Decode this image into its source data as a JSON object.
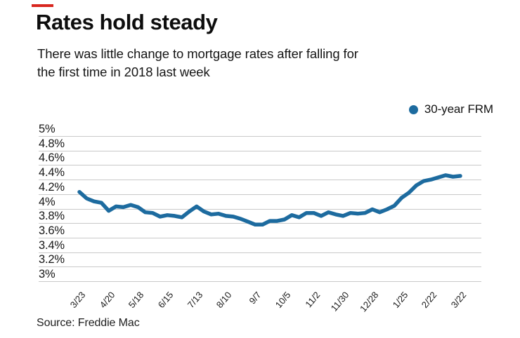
{
  "accent": {
    "dash_color": "#d8261f"
  },
  "header": {
    "title": "Rates hold steady",
    "subtitle_line1": "There was little change to mortgage rates after falling for",
    "subtitle_line2": "the first time in 2018 last week"
  },
  "legend": {
    "label": "30-year FRM"
  },
  "source": "Source: Freddie Mac",
  "chart_data": {
    "type": "line",
    "title": "Rates hold steady",
    "xlabel": "",
    "ylabel": "",
    "ylim": [
      3,
      5
    ],
    "grid": true,
    "legend_position": "top-right",
    "y_ticks": [
      "5%",
      "4.8%",
      "4.6%",
      "4.4%",
      "4.2%",
      "4%",
      "3.8%",
      "3.6%",
      "3.4%",
      "3.2%",
      "3%"
    ],
    "x": [
      "3/23",
      "3/30",
      "4/6",
      "4/13",
      "4/20",
      "4/27",
      "5/4",
      "5/11",
      "5/18",
      "5/25",
      "6/1",
      "6/8",
      "6/15",
      "6/22",
      "6/29",
      "7/6",
      "7/13",
      "7/20",
      "7/27",
      "8/3",
      "8/10",
      "8/17",
      "8/24",
      "8/31",
      "9/7",
      "9/14",
      "9/21",
      "9/28",
      "10/5",
      "10/12",
      "10/19",
      "10/26",
      "11/2",
      "11/9",
      "11/16",
      "11/22",
      "11/30",
      "12/7",
      "12/14",
      "12/21",
      "12/28",
      "1/4",
      "1/11",
      "1/18",
      "1/25",
      "2/1",
      "2/8",
      "2/15",
      "2/22",
      "3/1",
      "3/8",
      "3/15",
      "3/22"
    ],
    "x_tick_labels": [
      "3/23",
      "4/20",
      "5/18",
      "6/15",
      "7/13",
      "8/10",
      "9/7",
      "10/5",
      "11/2",
      "11/30",
      "12/28",
      "1/25",
      "2/22",
      "3/22"
    ],
    "x_tick_every": 4,
    "series": [
      {
        "name": "30-year FRM",
        "color": "#1d6b9f",
        "values": [
          4.23,
          4.14,
          4.1,
          4.08,
          3.97,
          4.03,
          4.02,
          4.05,
          4.02,
          3.95,
          3.94,
          3.89,
          3.91,
          3.9,
          3.88,
          3.96,
          4.03,
          3.96,
          3.92,
          3.93,
          3.9,
          3.89,
          3.86,
          3.82,
          3.78,
          3.78,
          3.83,
          3.83,
          3.85,
          3.91,
          3.88,
          3.94,
          3.94,
          3.9,
          3.95,
          3.92,
          3.9,
          3.94,
          3.93,
          3.94,
          3.99,
          3.95,
          3.99,
          4.04,
          4.15,
          4.22,
          4.32,
          4.38,
          4.4,
          4.43,
          4.46,
          4.44,
          4.45
        ]
      }
    ]
  }
}
